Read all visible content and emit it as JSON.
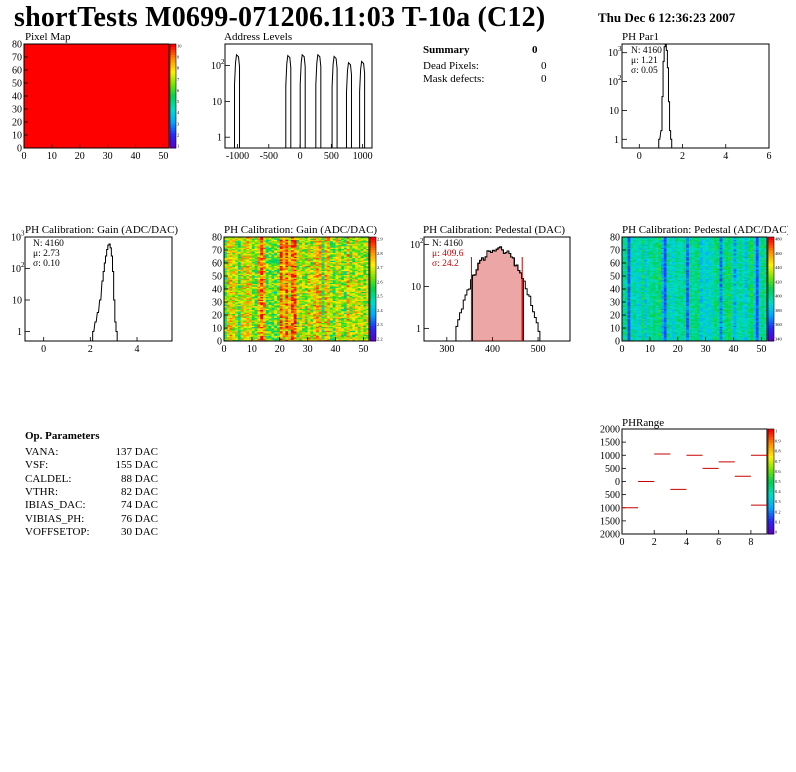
{
  "header": {
    "title": "shortTests M0699-071206.11:03 T-10a (C12)",
    "date": "Thu Dec  6 12:36:23 2007"
  },
  "summary": {
    "label": "Summary",
    "value": "0",
    "rows": [
      {
        "label": "Dead Pixels:",
        "value": "0"
      },
      {
        "label": "Mask defects:",
        "value": "0"
      }
    ]
  },
  "op_params": {
    "title": "Op. Parameters",
    "rows": [
      {
        "name": "VANA:",
        "value": "137 DAC"
      },
      {
        "name": "VSF:",
        "value": "155 DAC"
      },
      {
        "name": "CALDEL:",
        "value": "88 DAC"
      },
      {
        "name": "VTHR:",
        "value": "82 DAC"
      },
      {
        "name": "IBIAS_DAC:",
        "value": "74 DAC"
      },
      {
        "name": "VIBIAS_PH:",
        "value": "76 DAC"
      },
      {
        "name": "VOFFSETOP:",
        "value": "30 DAC"
      }
    ]
  },
  "colors": {
    "hist_line": "#000000",
    "stats_red": "#cc0000",
    "pixel_map_fill": "#ff0000"
  },
  "chart_data": [
    {
      "id": "pixel_map",
      "type": "heatmap",
      "title": "Pixel Map",
      "x_ticks": [
        "0",
        "10",
        "20",
        "30",
        "40",
        "50"
      ],
      "y_ticks": [
        "0",
        "10",
        "20",
        "30",
        "40",
        "50",
        "60",
        "70",
        "80"
      ],
      "xlim": [
        0,
        52
      ],
      "ylim": [
        0,
        80
      ],
      "uniform_value": 10,
      "palette_ticks": [
        "10",
        "9",
        "8",
        "7",
        "6",
        "5",
        "4",
        "3",
        "2",
        "1"
      ]
    },
    {
      "id": "address_levels",
      "type": "bar",
      "title": "Address Levels",
      "log_y": true,
      "x_ticks": [
        "-1000",
        "-500",
        "0",
        "500",
        "1000"
      ],
      "y_ticks": [
        "10^2",
        "10",
        "1"
      ],
      "xlim": [
        -1200,
        1150
      ],
      "ylim": [
        0.5,
        400
      ],
      "peaks": [
        {
          "x": -1000,
          "y": 200
        },
        {
          "x": -180,
          "y": 190
        },
        {
          "x": 50,
          "y": 200
        },
        {
          "x": 300,
          "y": 200
        },
        {
          "x": 560,
          "y": 180
        },
        {
          "x": 790,
          "y": 120
        },
        {
          "x": 1000,
          "y": 130
        }
      ]
    },
    {
      "id": "ph_par1",
      "type": "bar",
      "title": "PH Par1",
      "log_y": true,
      "x_ticks": [
        "0",
        "2",
        "4",
        "6"
      ],
      "y_ticks": [
        "10^3",
        "10^2",
        "10",
        "1"
      ],
      "xlim": [
        -0.8,
        6
      ],
      "ylim": [
        0.5,
        2000
      ],
      "stats": {
        "n": "N: 4160",
        "mu": "μ: 1.21",
        "sigma": "σ: 0.05"
      },
      "bins": [
        [
          0.9,
          1
        ],
        [
          1.0,
          2
        ],
        [
          1.05,
          30
        ],
        [
          1.1,
          500
        ],
        [
          1.15,
          1600
        ],
        [
          1.2,
          2000
        ],
        [
          1.25,
          1200
        ],
        [
          1.3,
          300
        ],
        [
          1.35,
          20
        ],
        [
          1.4,
          2
        ],
        [
          1.45,
          1
        ]
      ]
    },
    {
      "id": "gain_hist",
      "type": "bar",
      "title": "PH Calibration: Gain (ADC/DAC)",
      "log_y": true,
      "x_ticks": [
        "0",
        "2",
        "4"
      ],
      "y_ticks": [
        "10^3",
        "10^2",
        "10",
        "1"
      ],
      "xlim": [
        -0.8,
        5.5
      ],
      "ylim": [
        0.5,
        1000
      ],
      "stats": {
        "n": "N: 4160",
        "mu": "μ: 2.73",
        "sigma": "σ: 0.10"
      },
      "bins": [
        [
          2.1,
          1
        ],
        [
          2.2,
          2
        ],
        [
          2.3,
          4
        ],
        [
          2.4,
          10
        ],
        [
          2.5,
          40
        ],
        [
          2.55,
          80
        ],
        [
          2.6,
          150
        ],
        [
          2.65,
          250
        ],
        [
          2.7,
          400
        ],
        [
          2.75,
          550
        ],
        [
          2.8,
          600
        ],
        [
          2.85,
          450
        ],
        [
          2.9,
          250
        ],
        [
          2.95,
          80
        ],
        [
          3.0,
          10
        ],
        [
          3.05,
          2
        ],
        [
          3.1,
          1
        ]
      ]
    },
    {
      "id": "gain_map",
      "type": "heatmap",
      "title": "PH Calibration: Gain (ADC/DAC)",
      "x_ticks": [
        "0",
        "10",
        "20",
        "30",
        "40",
        "50"
      ],
      "y_ticks": [
        "0",
        "10",
        "20",
        "30",
        "40",
        "50",
        "60",
        "70",
        "80"
      ],
      "xlim": [
        0,
        52
      ],
      "ylim": [
        0,
        80
      ],
      "zlim": [
        2.1,
        2.95
      ],
      "palette_ticks": [
        "2.9",
        "2.8",
        "2.7",
        "2.6",
        "2.5",
        "2.4",
        "2.3",
        "2.2"
      ]
    },
    {
      "id": "pedestal_hist",
      "type": "bar",
      "title": "PH Calibration: Pedestal (DAC)",
      "log_y": true,
      "x_ticks": [
        "300",
        "400",
        "500"
      ],
      "y_ticks": [
        "10^2",
        "10",
        "1"
      ],
      "xlim": [
        250,
        570
      ],
      "ylim": [
        0.5,
        150
      ],
      "stats": {
        "n": "N: 4160",
        "mu": "μ: 409.6",
        "sigma": "σ: 24.2"
      },
      "mean": 409.6,
      "sigma": 24.2
    },
    {
      "id": "pedestal_map",
      "type": "heatmap",
      "title": "PH Calibration: Pedestal (ADC/DAC)",
      "x_ticks": [
        "0",
        "10",
        "20",
        "30",
        "40",
        "50"
      ],
      "y_ticks": [
        "0",
        "10",
        "20",
        "30",
        "40",
        "50",
        "60",
        "70",
        "80"
      ],
      "xlim": [
        0,
        52
      ],
      "ylim": [
        0,
        80
      ],
      "zlim": [
        340,
        480
      ],
      "palette_ticks": [
        "480",
        "460",
        "440",
        "420",
        "400",
        "380",
        "360",
        "340"
      ]
    },
    {
      "id": "ph_range",
      "type": "scatter",
      "title": "PHRange",
      "x_ticks": [
        "0",
        "2",
        "4",
        "6",
        "8"
      ],
      "y_ticks": [
        "2000",
        "1500",
        "1000",
        "500",
        "0",
        "500",
        "1000",
        "1500",
        "2000"
      ],
      "xlim": [
        0,
        9
      ],
      "ylim": [
        -2000,
        2000
      ],
      "segments": [
        {
          "x": 0,
          "y": -1000
        },
        {
          "x": 1,
          "y": 0
        },
        {
          "x": 2,
          "y": 1050
        },
        {
          "x": 3,
          "y": -300
        },
        {
          "x": 4,
          "y": 1000
        },
        {
          "x": 5,
          "y": 500
        },
        {
          "x": 6,
          "y": 750
        },
        {
          "x": 7,
          "y": 200
        },
        {
          "x": 8,
          "y": 1000
        },
        {
          "x": 8,
          "y": -900
        }
      ],
      "palette_ticks": [
        "1",
        "0.9",
        "0.8",
        "0.7",
        "0.6",
        "0.5",
        "0.4",
        "0.3",
        "0.2",
        "0.1",
        "0"
      ]
    }
  ]
}
